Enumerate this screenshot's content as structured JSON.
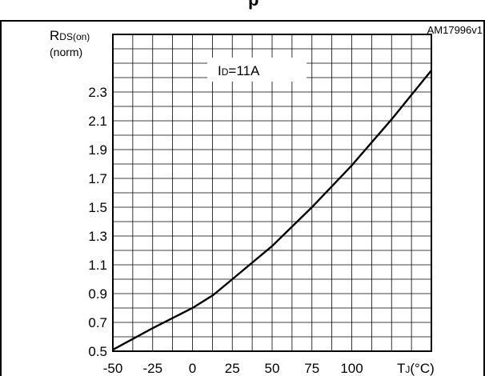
{
  "header_fragment": "p",
  "figure_id": "AM17996v1",
  "chart_data": {
    "type": "line",
    "title": "",
    "ylabel": {
      "main": "R",
      "sub": "DS(on)",
      "second_line": "(norm)"
    },
    "xlabel": {
      "main": "T",
      "sub": "J",
      "unit": "(°C)"
    },
    "annotation": {
      "main": "I",
      "sub": "D",
      "value": "=11A"
    },
    "xlim": [
      -50,
      150
    ],
    "ylim": [
      0.5,
      2.7
    ],
    "x_ticks": [
      -50,
      -25,
      0,
      25,
      50,
      75,
      100
    ],
    "x_tick_labels": [
      "-50",
      "-25",
      "0",
      "25",
      "50",
      "75",
      "100"
    ],
    "y_ticks": [
      0.5,
      0.7,
      0.9,
      1.1,
      1.3,
      1.5,
      1.7,
      1.9,
      2.1,
      2.3
    ],
    "y_tick_labels": [
      "0.5",
      "0.7",
      "0.9",
      "1.1",
      "1.3",
      "1.5",
      "1.7",
      "1.9",
      "2.1",
      "2.3"
    ],
    "grid": true,
    "series": [
      {
        "x": [
          -50,
          -25,
          0,
          13,
          25,
          50,
          75,
          100,
          125,
          150
        ],
        "y": [
          0.51,
          0.66,
          0.8,
          0.89,
          1.0,
          1.23,
          1.5,
          1.79,
          2.11,
          2.45
        ]
      }
    ]
  }
}
